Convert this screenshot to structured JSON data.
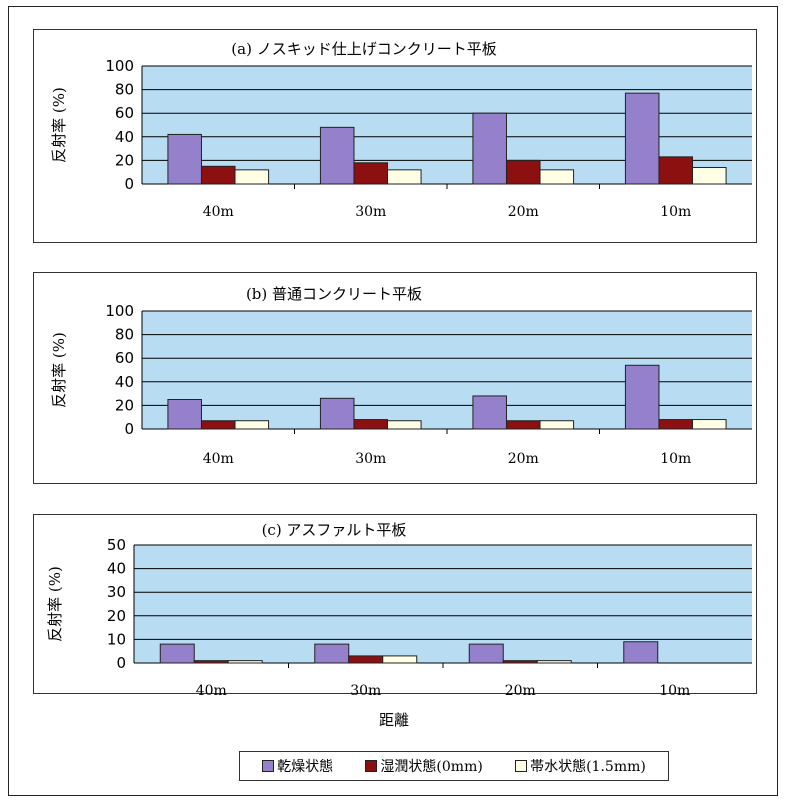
{
  "xlabel": "距離",
  "colors": {
    "plot_bg": "#b8dcf2",
    "grid": "#000000",
    "dry": "#9580cc",
    "wet": "#8c1010",
    "flooded": "#ffffe6"
  },
  "legend": [
    {
      "label": "乾燥状態",
      "color": "#9580cc"
    },
    {
      "label": "湿潤状態(0mm)",
      "color": "#8c1010"
    },
    {
      "label": "帯水状態(1.5mm)",
      "color": "#ffffe6"
    }
  ],
  "chart_data": [
    {
      "type": "bar",
      "title": "(a) ノスキッド仕上げコンクリート平板",
      "ylabel": "反射率 (%)",
      "categories": [
        "40m",
        "30m",
        "20m",
        "10m"
      ],
      "ylim": [
        0,
        100
      ],
      "yticks": [
        0,
        20,
        40,
        60,
        80,
        100
      ],
      "grid": true,
      "series": [
        {
          "name": "乾燥状態",
          "values": [
            42,
            48,
            60,
            77
          ]
        },
        {
          "name": "湿潤状態(0mm)",
          "values": [
            15,
            18,
            20,
            23
          ]
        },
        {
          "name": "帯水状態(1.5mm)",
          "values": [
            12,
            12,
            12,
            14
          ]
        }
      ]
    },
    {
      "type": "bar",
      "title": "(b) 普通コンクリート平板",
      "ylabel": "反射率 (%)",
      "categories": [
        "40m",
        "30m",
        "20m",
        "10m"
      ],
      "ylim": [
        0,
        100
      ],
      "yticks": [
        0,
        20,
        40,
        60,
        80,
        100
      ],
      "grid": true,
      "series": [
        {
          "name": "乾燥状態",
          "values": [
            25,
            26,
            28,
            54
          ]
        },
        {
          "name": "湿潤状態(0mm)",
          "values": [
            7,
            8,
            7,
            8
          ]
        },
        {
          "name": "帯水状態(1.5mm)",
          "values": [
            7,
            7,
            7,
            8
          ]
        }
      ]
    },
    {
      "type": "bar",
      "title": "(c) アスファルト平板",
      "ylabel": "反射率 (%)",
      "categories": [
        "40m",
        "30m",
        "20m",
        "10m"
      ],
      "ylim": [
        0,
        50
      ],
      "yticks": [
        0,
        10,
        20,
        30,
        40,
        50
      ],
      "grid": true,
      "series": [
        {
          "name": "乾燥状態",
          "values": [
            8,
            8,
            8,
            9
          ]
        },
        {
          "name": "湿潤状態(0mm)",
          "values": [
            1,
            3,
            1,
            0
          ]
        },
        {
          "name": "帯水状態(1.5mm)",
          "values": [
            1,
            3,
            1,
            0
          ]
        }
      ]
    }
  ]
}
